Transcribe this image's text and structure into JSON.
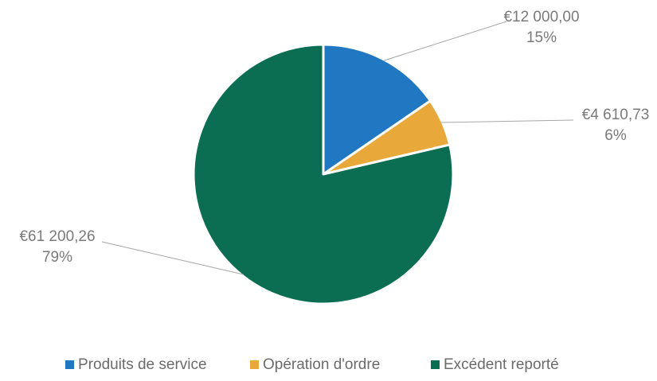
{
  "chart_data": {
    "type": "pie",
    "title": "",
    "categories": [
      "Produits de service",
      "Opération d'ordre",
      "Excédent reporté"
    ],
    "values": [
      12000.0,
      4610.73,
      61200.26
    ],
    "value_labels": [
      "€12 000,00",
      "€4 610,73",
      "€61 200,26"
    ],
    "percent_labels": [
      "15%",
      "6%",
      "79%"
    ],
    "colors": [
      "#1f78c1",
      "#e8a93a",
      "#0b6e52"
    ],
    "start_angle_deg": 0,
    "direction": "clockwise",
    "legend_position": "bottom"
  }
}
